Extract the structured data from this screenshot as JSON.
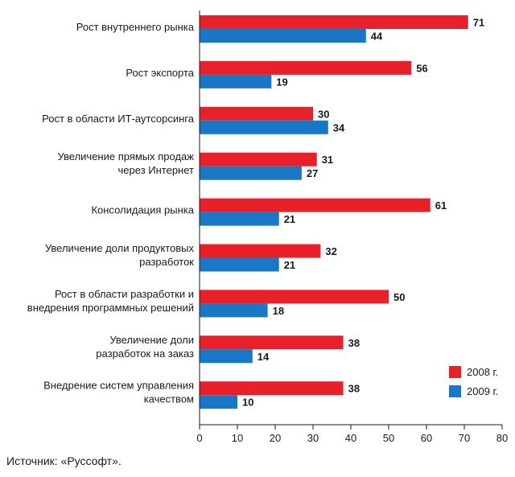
{
  "chart_data": {
    "type": "bar",
    "orientation": "horizontal",
    "categories": [
      [
        "Рост внутреннего рынка"
      ],
      [
        "Рост экспорта"
      ],
      [
        "Рост в области ИТ-аутсорсинга"
      ],
      [
        "Увеличение прямых продаж",
        "через Интернет"
      ],
      [
        "Консолидация рынка"
      ],
      [
        "Увеличение доли продуктовых",
        "разработок"
      ],
      [
        "Рост в области разработки и",
        "внедрения программных решений"
      ],
      [
        "Увеличение доли",
        "разработок на заказ"
      ],
      [
        "Внедрение систем управления",
        "качеством"
      ]
    ],
    "series": [
      {
        "name": "2008 г.",
        "color": "#e8202a",
        "values": [
          71,
          56,
          30,
          31,
          61,
          32,
          50,
          38,
          38
        ]
      },
      {
        "name": "2009 г.",
        "color": "#1878c6",
        "values": [
          44,
          19,
          34,
          27,
          21,
          21,
          18,
          14,
          10
        ]
      }
    ],
    "xlim": [
      0,
      80
    ],
    "xticks": [
      0,
      10,
      20,
      30,
      40,
      50,
      60,
      70,
      80
    ],
    "grid": false,
    "legend_position": "bottom-right"
  },
  "source": "Источник: «Руссофт»."
}
